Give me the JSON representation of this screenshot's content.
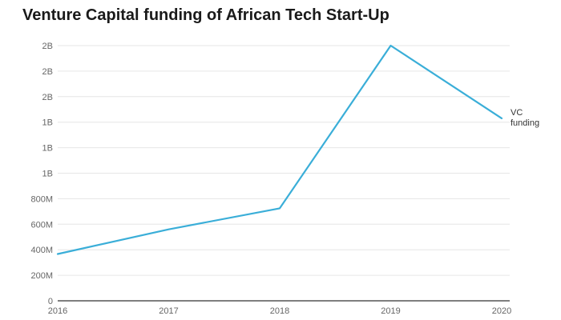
{
  "chart_data": {
    "type": "line",
    "title": "Venture Capital funding of African Tech Start-Up",
    "xlabel": "",
    "ylabel": "",
    "x": [
      "2016",
      "2017",
      "2018",
      "2019",
      "2020"
    ],
    "series": [
      {
        "name": "VC funding",
        "label_lines": [
          "VC",
          "funding"
        ],
        "values": [
          367,
          560,
          725,
          2000,
          1430
        ],
        "color": "#3aaed8"
      }
    ],
    "y_ticks": [
      {
        "value": 0,
        "label": "0"
      },
      {
        "value": 200,
        "label": "200M"
      },
      {
        "value": 400,
        "label": "400M"
      },
      {
        "value": 600,
        "label": "600M"
      },
      {
        "value": 800,
        "label": "800M"
      },
      {
        "value": 1000,
        "label": "1B"
      },
      {
        "value": 1200,
        "label": "1B"
      },
      {
        "value": 1400,
        "label": "1B"
      },
      {
        "value": 1600,
        "label": "2B"
      },
      {
        "value": 1800,
        "label": "2B"
      },
      {
        "value": 2000,
        "label": "2B"
      }
    ],
    "ylim": [
      0,
      2000
    ],
    "value_unit": "million USD",
    "grid": true,
    "legend": "inline-end-of-line"
  }
}
